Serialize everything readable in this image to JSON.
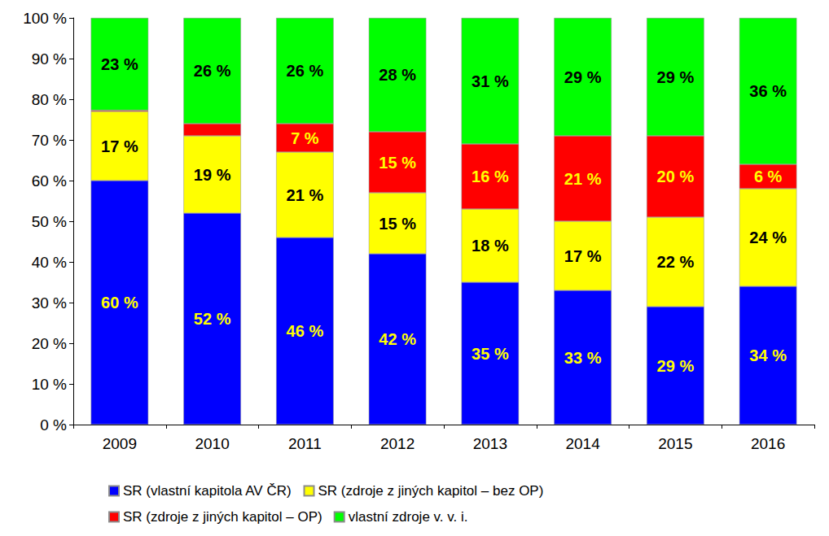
{
  "chart_data": {
    "type": "bar",
    "stacked": true,
    "data_labels": true,
    "grid": false,
    "legend": "bottom",
    "categories": [
      "2009",
      "2010",
      "2011",
      "2012",
      "2013",
      "2014",
      "2015",
      "2016"
    ],
    "ylim": [
      0,
      100
    ],
    "yticks": [
      {
        "value": 0,
        "label": "0 %"
      },
      {
        "value": 10,
        "label": "10 %"
      },
      {
        "value": 20,
        "label": "20 %"
      },
      {
        "value": 30,
        "label": "30 %"
      },
      {
        "value": 40,
        "label": "40 %"
      },
      {
        "value": 50,
        "label": "50 %"
      },
      {
        "value": 60,
        "label": "60 %"
      },
      {
        "value": 70,
        "label": "70 %"
      },
      {
        "value": 80,
        "label": "80 %"
      },
      {
        "value": 90,
        "label": "90 %"
      },
      {
        "value": 100,
        "label": "100 %"
      }
    ],
    "series": [
      {
        "name": "SR (vlastní kapitola AV ČR)",
        "color": "#0000ff",
        "values": [
          60,
          52,
          46,
          42,
          35,
          33,
          29,
          34
        ],
        "value_labels": [
          "60 %",
          "52 %",
          "46 %",
          "42 %",
          "35 %",
          "33 %",
          "29 %",
          "34 %"
        ]
      },
      {
        "name": "SR (zdroje z jiných kapitol – bez OP)",
        "color": "#ffff00",
        "values": [
          17,
          19,
          21,
          15,
          18,
          17,
          22,
          24
        ],
        "value_labels": [
          "17 %",
          "19 %",
          "21 %",
          "15 %",
          "18 %",
          "17 %",
          "22 %",
          "24 %"
        ]
      },
      {
        "name": "SR (zdroje z jiných kapitol – OP)",
        "color": "#ff0000",
        "values": [
          0.3,
          3,
          7,
          15,
          16,
          21,
          20,
          6
        ],
        "value_labels": [
          null,
          null,
          "7 %",
          "15 %",
          "16 %",
          "21 %",
          "20 %",
          "6 %"
        ]
      },
      {
        "name": "vlastní zdroje v. v. i.",
        "color": "#00ff00",
        "values": [
          22.7,
          26,
          26,
          28,
          31,
          29,
          29,
          36
        ],
        "value_labels": [
          "23 %",
          "26 %",
          "26 %",
          "28 %",
          "31 %",
          "29 %",
          "29 %",
          "36 %"
        ]
      }
    ]
  }
}
